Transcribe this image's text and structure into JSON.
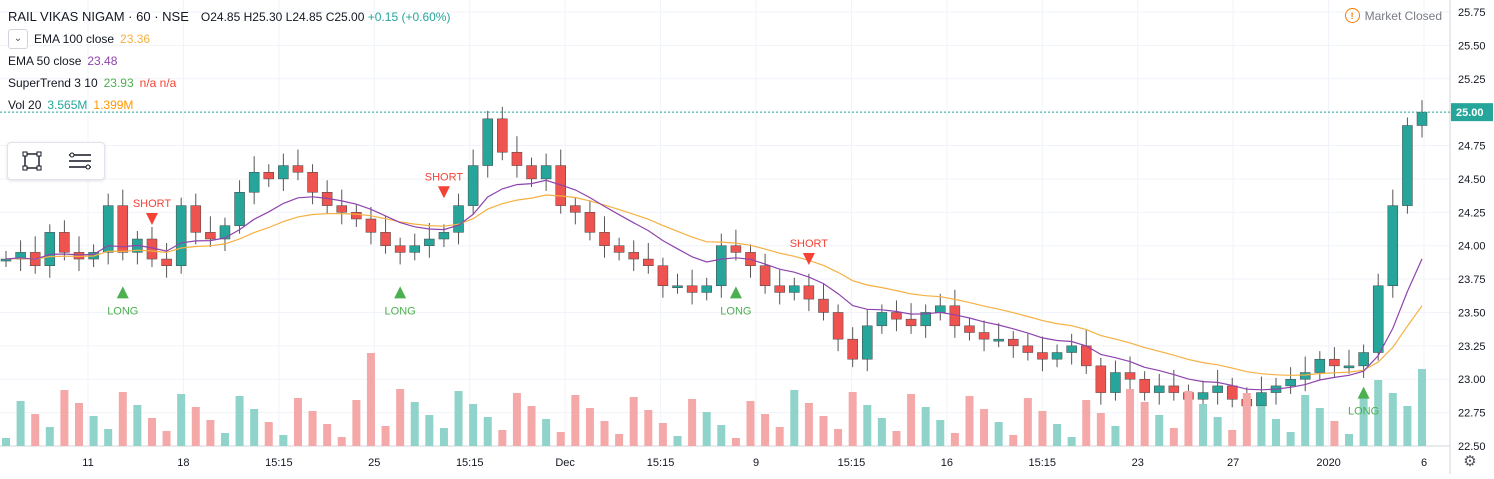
{
  "header": {
    "symbol": "RAIL VIKAS NIGAM",
    "interval": "60",
    "exchange": "NSE",
    "open": "O24.85",
    "high": "H25.30",
    "low": "L24.85",
    "close": "C25.00",
    "change": "+0.15 (+0.60%)"
  },
  "indicators": [
    {
      "name": "EMA 100 close",
      "value": "23.36",
      "color": "#f5b041"
    },
    {
      "name": "EMA 50 close",
      "value": "23.48",
      "color": "#8e44ad"
    },
    {
      "name": "SuperTrend 3 10",
      "value": "23.93",
      "extra": "n/a n/a",
      "color": "#4caf50"
    },
    {
      "name": "Vol 20",
      "value": "3.565M",
      "value2": "1.399M",
      "color": "#26a69a",
      "color2": "#ff9800"
    }
  ],
  "market_status": "Market Closed",
  "colors": {
    "up": "#26a69a",
    "down": "#ef5350",
    "st_up": "#4caf50",
    "st_down": "#f44336",
    "ema100": "#f5b041",
    "ema50": "#8e44ad"
  },
  "chart_data": {
    "type": "candlestick",
    "y_axis": {
      "ticks": [
        "25.75",
        "25.50",
        "25.25",
        "25.00",
        "24.75",
        "24.50",
        "24.25",
        "24.00",
        "23.75",
        "23.50",
        "23.25",
        "23.00",
        "22.75",
        "22.50"
      ],
      "range": [
        22.5,
        25.75
      ]
    },
    "x_axis": {
      "ticks": [
        "11",
        "18",
        "15:15",
        "25",
        "15:15",
        "Dec",
        "15:15",
        "9",
        "15:15",
        "16",
        "15:15",
        "23",
        "27",
        "2020",
        "6"
      ]
    },
    "last_price": "25.00",
    "close": [
      23.9,
      23.95,
      23.85,
      24.1,
      23.95,
      23.9,
      23.95,
      24.3,
      23.95,
      24.05,
      23.9,
      23.85,
      24.3,
      24.1,
      24.05,
      24.15,
      24.4,
      24.55,
      24.5,
      24.6,
      24.55,
      24.4,
      24.3,
      24.25,
      24.2,
      24.1,
      24.0,
      23.95,
      24.0,
      24.05,
      24.1,
      24.3,
      24.6,
      24.95,
      24.7,
      24.6,
      24.5,
      24.6,
      24.3,
      24.25,
      24.1,
      24.0,
      23.95,
      23.9,
      23.85,
      23.7,
      23.7,
      23.65,
      23.7,
      24.0,
      23.95,
      23.85,
      23.7,
      23.65,
      23.7,
      23.6,
      23.5,
      23.3,
      23.15,
      23.4,
      23.5,
      23.45,
      23.4,
      23.5,
      23.55,
      23.4,
      23.35,
      23.3,
      23.3,
      23.25,
      23.2,
      23.15,
      23.2,
      23.25,
      23.1,
      22.9,
      23.05,
      23.0,
      22.9,
      22.95,
      22.9,
      22.85,
      22.9,
      22.95,
      22.85,
      22.8,
      22.9,
      22.95,
      23.0,
      23.05,
      23.15,
      23.1,
      23.1,
      23.2,
      23.7,
      24.3,
      24.9,
      25.0
    ]
  },
  "annotations": {
    "long": "LONG",
    "short": "SHORT"
  }
}
